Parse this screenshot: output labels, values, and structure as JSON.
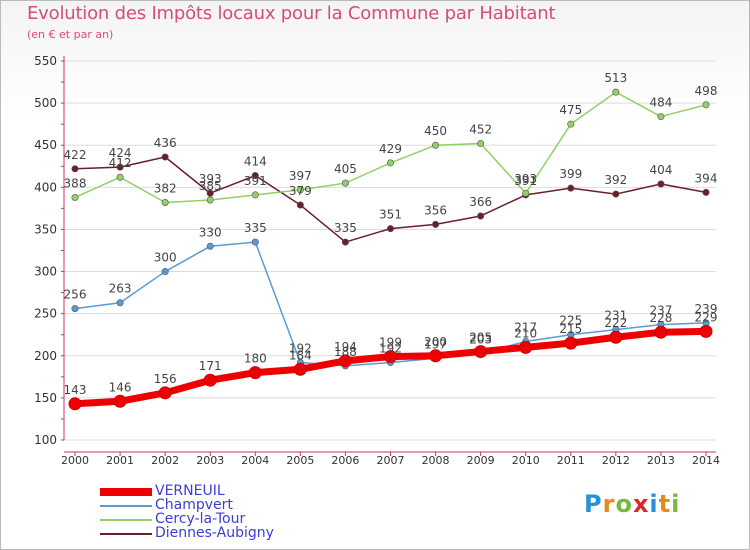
{
  "header": {
    "title": "Evolution des Impôts locaux pour la Commune par Habitant",
    "subtitle": "(en € et par an)"
  },
  "logo": {
    "letters": [
      "P",
      "r",
      "o",
      "x",
      "i",
      "t",
      "i"
    ],
    "colors": [
      "#2a8fd6",
      "#e8891b",
      "#7ab83c",
      "#d62929",
      "#2a8fd6",
      "#e8891b",
      "#7ab83c"
    ]
  },
  "colors": {
    "title": "#d64c7a",
    "axis": "#cc3366",
    "grid": "#dddddd",
    "legend_text": "#3c3cd8"
  },
  "chart_data": {
    "type": "line",
    "title": "Evolution des Impôts locaux pour la Commune par Habitant",
    "subtitle": "(en € et par an)",
    "xlabel": "",
    "ylabel": "",
    "x": [
      "2000",
      "2001",
      "2002",
      "2003",
      "2004",
      "2005",
      "2006",
      "2007",
      "2008",
      "2009",
      "2010",
      "2011",
      "2012",
      "2013",
      "2014"
    ],
    "ylim": [
      100,
      550
    ],
    "yticks": [
      100,
      150,
      200,
      250,
      300,
      350,
      400,
      450,
      500,
      550
    ],
    "grid": true,
    "legend_position": "bottom-left",
    "series": [
      {
        "name": "VERNEUIL",
        "color": "#ee0000",
        "values": [
          143,
          146,
          156,
          171,
          180,
          184,
          194,
          199,
          200,
          205,
          210,
          215,
          222,
          228,
          229
        ]
      },
      {
        "name": "Champvert",
        "color": "#5a9bd5",
        "values": [
          256,
          263,
          300,
          330,
          335,
          192,
          188,
          192,
          197,
          203,
          217,
          225,
          231,
          237,
          239
        ]
      },
      {
        "name": "Cercy-la-Tour",
        "color": "#8fd165",
        "values": [
          388,
          412,
          382,
          385,
          391,
          397,
          405,
          429,
          450,
          452,
          393,
          475,
          513,
          484,
          498
        ]
      },
      {
        "name": "Diennes-Aubigny",
        "color": "#6b1f2a",
        "values": [
          422,
          424,
          436,
          393,
          414,
          379,
          335,
          351,
          356,
          366,
          391,
          399,
          392,
          404,
          394
        ]
      }
    ]
  }
}
